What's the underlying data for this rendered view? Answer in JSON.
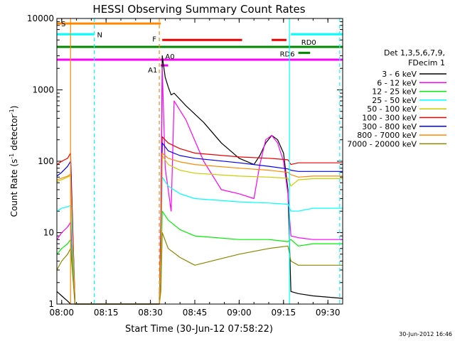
{
  "chart_data": {
    "type": "line",
    "title": "HESSI Observing Summary Count Rates",
    "xlabel": "Start Time (30-Jun-12 07:58:22)",
    "ylabel": "Count Rate (s⁻¹ detector⁻¹)",
    "ylabel_parts": [
      "Count Rate (s",
      "-1",
      " detector",
      "-1",
      ")"
    ],
    "y_scale": "log",
    "ylim": [
      1,
      10000
    ],
    "xlim": [
      "07:58:22",
      "09:35:00"
    ],
    "x_ticks": [
      "08:00",
      "08:15",
      "08:30",
      "08:45",
      "09:00",
      "09:15",
      "09:30"
    ],
    "y_ticks": [
      "1",
      "10",
      "100",
      "1000",
      "10000"
    ],
    "legend": {
      "placement": "right",
      "header": [
        "Det 1,3,5,6,7,9,",
        "FDecim 1"
      ],
      "entries": [
        {
          "label": "3 - 6 keV",
          "color": "#000000"
        },
        {
          "label": "6 - 12 keV",
          "color": "#ff00ff"
        },
        {
          "label": "12 - 25 keV",
          "color": "#00ee00"
        },
        {
          "label": "25 - 50 keV",
          "color": "#00ffff"
        },
        {
          "label": "50 - 100 keV",
          "color": "#cccc00"
        },
        {
          "label": "100 - 300 keV",
          "color": "#ee0000"
        },
        {
          "label": "300 - 800 keV",
          "color": "#0000ee"
        },
        {
          "label": "800 - 7000 keV",
          "color": "#ff8800"
        },
        {
          "label": "7000 - 20000 keV",
          "color": "#888800"
        }
      ]
    },
    "series": [
      {
        "name": "3 - 6 keV",
        "color": "#000000",
        "x": [
          "07:58:22",
          "08:00",
          "08:02",
          "08:03",
          "08:04:30",
          "08:33",
          "08:33:30",
          "08:34",
          "08:35",
          "08:36",
          "08:37",
          "08:38",
          "08:42",
          "08:48",
          "08:54",
          "09:00",
          "09:05",
          "09:07",
          "09:09",
          "09:11",
          "09:13",
          "09:15",
          "09:16:30",
          "09:17:30",
          "09:20",
          "09:25",
          "09:35"
        ],
        "y": [
          1.5,
          1.3,
          1.1,
          1,
          1,
          1,
          2.5,
          3000,
          1500,
          1100,
          850,
          900,
          600,
          350,
          180,
          110,
          90,
          120,
          180,
          230,
          200,
          130,
          40,
          1.5,
          1.4,
          1.3,
          1.2
        ]
      },
      {
        "name": "6 - 12 keV",
        "color": "#ff00ff",
        "x": [
          "07:58:22",
          "08:00",
          "08:02",
          "08:03",
          "08:04:30",
          "08:33",
          "08:33:30",
          "08:34",
          "08:35",
          "08:36",
          "08:37",
          "08:38",
          "08:42",
          "08:48",
          "08:54",
          "09:00",
          "09:05",
          "09:07",
          "09:09",
          "09:11",
          "09:13",
          "09:15",
          "09:16:30",
          "09:17:30",
          "09:20",
          "09:25",
          "09:35"
        ],
        "y": [
          8,
          10,
          12,
          14,
          1,
          1,
          15,
          2000,
          80,
          40,
          20,
          700,
          380,
          100,
          40,
          35,
          30,
          90,
          200,
          230,
          180,
          100,
          35,
          9,
          8.5,
          8,
          8
        ]
      },
      {
        "name": "12 - 25 keV",
        "color": "#00ee00",
        "x": [
          "07:58:22",
          "08:00",
          "08:02",
          "08:03",
          "08:04:30",
          "08:33",
          "08:33:30",
          "08:34",
          "08:36",
          "08:40",
          "08:45",
          "09:00",
          "09:10",
          "09:16:30",
          "09:17:30",
          "09:20",
          "09:25",
          "09:35"
        ],
        "y": [
          5,
          6,
          7,
          8,
          1,
          1,
          2,
          20,
          15,
          11,
          9,
          8,
          8,
          7.5,
          8,
          6.5,
          7,
          7
        ]
      },
      {
        "name": "25 - 50 keV",
        "color": "#00ffff",
        "x": [
          "07:58:22",
          "08:00",
          "08:02",
          "08:03",
          "08:04:30",
          "08:33",
          "08:33:30",
          "08:34",
          "08:36",
          "08:40",
          "08:45",
          "09:00",
          "09:10",
          "09:16:30",
          "09:17:30",
          "09:20",
          "09:25",
          "09:35"
        ],
        "y": [
          20,
          22,
          23,
          24,
          1,
          1,
          3,
          60,
          45,
          35,
          30,
          27,
          26,
          25,
          20,
          20,
          22,
          22
        ]
      },
      {
        "name": "50 - 100 keV",
        "color": "#cccc00",
        "x": [
          "07:58:22",
          "08:00",
          "08:02",
          "08:03",
          "08:04:30",
          "08:33",
          "08:33:30",
          "08:34",
          "08:36",
          "08:40",
          "08:45",
          "09:00",
          "09:10",
          "09:16:30",
          "09:17:30",
          "09:20",
          "09:25",
          "09:35"
        ],
        "y": [
          52,
          55,
          60,
          63,
          1,
          1,
          5,
          120,
          90,
          75,
          68,
          62,
          60,
          58,
          45,
          55,
          57,
          57
        ]
      },
      {
        "name": "100 - 300 keV",
        "color": "#ee0000",
        "x": [
          "07:58:22",
          "08:00",
          "08:02",
          "08:03",
          "08:04:30",
          "08:33",
          "08:33:30",
          "08:34",
          "08:36",
          "08:40",
          "08:45",
          "09:00",
          "09:10",
          "09:16:30",
          "09:17:30",
          "09:20",
          "09:25",
          "09:35"
        ],
        "y": [
          90,
          100,
          110,
          130,
          1,
          1,
          10,
          220,
          180,
          150,
          130,
          115,
          110,
          105,
          90,
          95,
          95,
          95
        ]
      },
      {
        "name": "300 - 800 keV",
        "color": "#0000ee",
        "x": [
          "07:58:22",
          "08:00",
          "08:02",
          "08:03",
          "08:04:30",
          "08:33",
          "08:33:30",
          "08:34",
          "08:36",
          "08:40",
          "08:45",
          "09:00",
          "09:10",
          "09:16:30",
          "09:17:30",
          "09:20",
          "09:25",
          "09:35"
        ],
        "y": [
          62,
          70,
          85,
          100,
          1,
          1,
          8,
          180,
          140,
          120,
          110,
          95,
          85,
          78,
          75,
          72,
          72,
          72
        ]
      },
      {
        "name": "800 - 7000 keV",
        "color": "#ff8800",
        "x": [
          "07:58:22",
          "08:00",
          "08:02",
          "08:03",
          "08:04:30",
          "08:33",
          "08:33:30",
          "08:34",
          "08:36",
          "08:40",
          "08:45",
          "09:00",
          "09:10",
          "09:16:30",
          "09:17:30",
          "09:20",
          "09:25",
          "09:35"
        ],
        "y": [
          55,
          58,
          62,
          66,
          1,
          1,
          6,
          130,
          110,
          98,
          90,
          80,
          75,
          70,
          65,
          60,
          62,
          62
        ]
      },
      {
        "name": "7000 - 20000 keV",
        "color": "#888800",
        "x": [
          "07:58:22",
          "08:00",
          "08:02",
          "08:03",
          "08:04:30",
          "08:33",
          "08:33:30",
          "08:34",
          "08:36",
          "08:40",
          "08:45",
          "09:00",
          "09:10",
          "09:16:30",
          "09:17:30",
          "09:20",
          "09:25",
          "09:35"
        ],
        "y": [
          3,
          4,
          5,
          6,
          1,
          1,
          1.5,
          10,
          6,
          4.5,
          3.5,
          5,
          6,
          6.5,
          4,
          3.5,
          3.5,
          3.5
        ]
      }
    ],
    "flag_bars": [
      {
        "label": "S",
        "color": "#ff8800",
        "x": [
          "07:58:22",
          "08:33:30"
        ],
        "y": 8500
      },
      {
        "label": "N",
        "color": "#00ffff",
        "x": [
          "07:58:22",
          "08:11"
        ],
        "y": 6000,
        "segments": [
          [
            "07:58:22",
            "08:11"
          ],
          [
            "09:17:30",
            "09:35"
          ]
        ]
      },
      {
        "label": "F",
        "color": "#ee0000",
        "segments": [
          [
            "08:34",
            "09:01"
          ],
          [
            "09:11",
            "09:16"
          ]
        ],
        "y": 5000
      },
      {
        "label": "RD0",
        "color": "#008800",
        "x": [
          "07:58:22",
          "09:35:00"
        ],
        "y": 4000
      },
      {
        "label": "RD6",
        "color": "#008800",
        "segments": [
          [
            "09:20",
            "09:24"
          ]
        ],
        "y": 3300
      },
      {
        "label": "A0",
        "color": "#ff00ff",
        "x": [
          "07:58:22",
          "09:35:00"
        ],
        "y": 2650
      },
      {
        "label": "A1",
        "color": "#ff00ff",
        "segments": [
          [
            "08:33:30",
            "08:36"
          ]
        ],
        "y": 2200
      }
    ],
    "markers": [
      {
        "x": "08:03",
        "color": "#ff8800",
        "style": "solid"
      },
      {
        "x": "08:11",
        "color": "#00ffff",
        "style": "dashed"
      },
      {
        "x": "08:33",
        "color": "#ff8800",
        "style": "dashed"
      },
      {
        "x": "09:17",
        "color": "#00ffff",
        "style": "solid"
      },
      {
        "x": "09:34",
        "color": "#00ffff",
        "style": "dashed"
      }
    ]
  },
  "footer_timestamp": "30-Jun-2012 16:46"
}
